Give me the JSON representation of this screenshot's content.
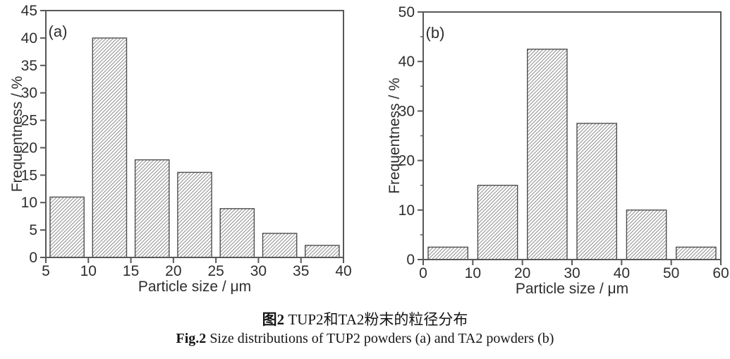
{
  "figure": {
    "caption_cn_bold": "图2",
    "caption_cn_rest": " TUP2和TA2粉末的粒径分布",
    "caption_en_bold": "Fig.2",
    "caption_en_rest": " Size distributions of TUP2 powders (a) and TA2 powders (b)"
  },
  "colors": {
    "background": "#ffffff",
    "frame": "#585858",
    "tick": "#585858",
    "text": "#2e2e2e",
    "bar_edge": "#4f4f4f",
    "hatch": "#8f8f8f"
  },
  "chart_data": [
    {
      "type": "bar",
      "panel_label": "(a)",
      "title": "",
      "xlabel": "Particle size / μm",
      "ylabel": "Frequentness / %",
      "xlim": [
        5,
        40
      ],
      "ylim": [
        0,
        45
      ],
      "x_ticks": [
        5,
        10,
        15,
        20,
        25,
        30,
        35,
        40
      ],
      "y_ticks": [
        0,
        5,
        10,
        15,
        20,
        25,
        30,
        35,
        40,
        45
      ],
      "y_minor_ticks": [],
      "x_minor_ticks": [],
      "grid": false,
      "legend": null,
      "bar_style": "diagonal-hatch",
      "bar_fill_fraction_of_bin": 0.8,
      "bins": [
        [
          5,
          10
        ],
        [
          10,
          15
        ],
        [
          15,
          20
        ],
        [
          20,
          25
        ],
        [
          25,
          30
        ],
        [
          30,
          35
        ],
        [
          35,
          40
        ]
      ],
      "values": [
        11,
        40,
        17.8,
        15.5,
        8.9,
        4.4,
        2.2
      ]
    },
    {
      "type": "bar",
      "panel_label": "(b)",
      "title": "",
      "xlabel": "Particle size / μm",
      "ylabel": "Frequentness / %",
      "xlim": [
        0,
        60
      ],
      "ylim": [
        0,
        50
      ],
      "x_ticks": [
        0,
        10,
        20,
        30,
        40,
        50,
        60
      ],
      "y_ticks": [
        0,
        10,
        20,
        30,
        40,
        50
      ],
      "y_minor_ticks": [
        5,
        15,
        25,
        35,
        45
      ],
      "x_minor_ticks": [],
      "grid": false,
      "legend": null,
      "bar_style": "diagonal-hatch",
      "bar_fill_fraction_of_bin": 0.8,
      "bins": [
        [
          0,
          10
        ],
        [
          10,
          20
        ],
        [
          20,
          30
        ],
        [
          30,
          40
        ],
        [
          40,
          50
        ],
        [
          50,
          60
        ]
      ],
      "values": [
        2.5,
        15,
        42.5,
        27.5,
        10,
        2.5
      ]
    }
  ]
}
